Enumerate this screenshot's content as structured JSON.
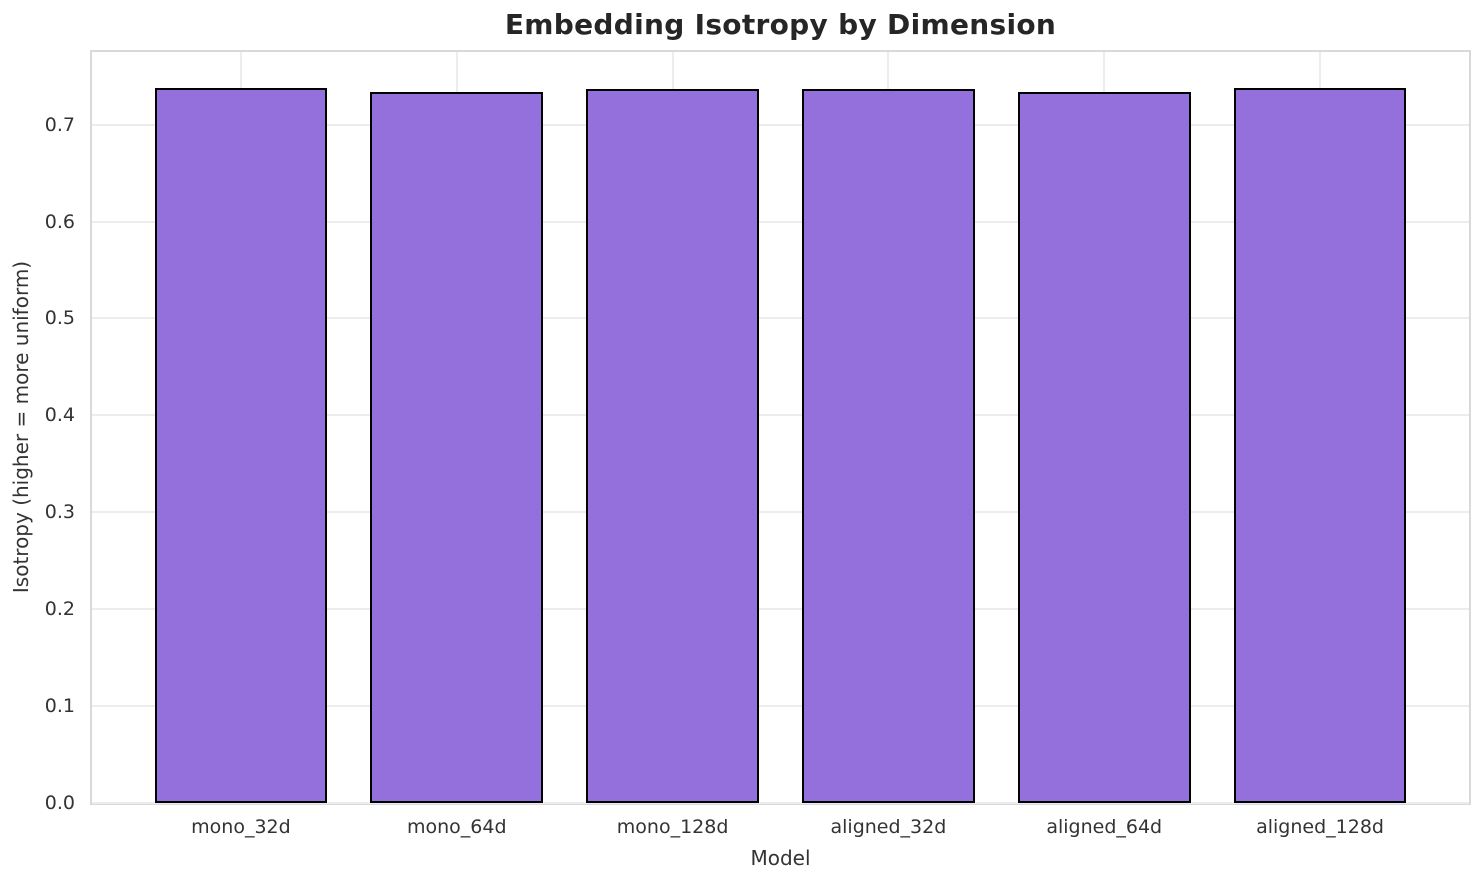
{
  "chart_data": {
    "type": "bar",
    "title": "Embedding Isotropy by Dimension",
    "xlabel": "Model",
    "ylabel": "Isotropy (higher = more uniform)",
    "categories": [
      "mono_32d",
      "mono_64d",
      "mono_128d",
      "aligned_32d",
      "aligned_64d",
      "aligned_128d"
    ],
    "values": [
      0.738,
      0.734,
      0.737,
      0.737,
      0.734,
      0.738
    ],
    "ylim": [
      0,
      0.775
    ],
    "yticks": [
      0.0,
      0.1,
      0.2,
      0.3,
      0.4,
      0.5,
      0.6,
      0.7
    ],
    "ytick_decimals": 1,
    "grid": true,
    "legend_position": "none",
    "bar_color": "#9370DB",
    "bar_edge_color": "#000000",
    "grid_color": "#ececec",
    "spine_color": "#d9d9d9",
    "text_color": "#333333",
    "title_color": "#262626",
    "background_color": "#ffffff"
  }
}
